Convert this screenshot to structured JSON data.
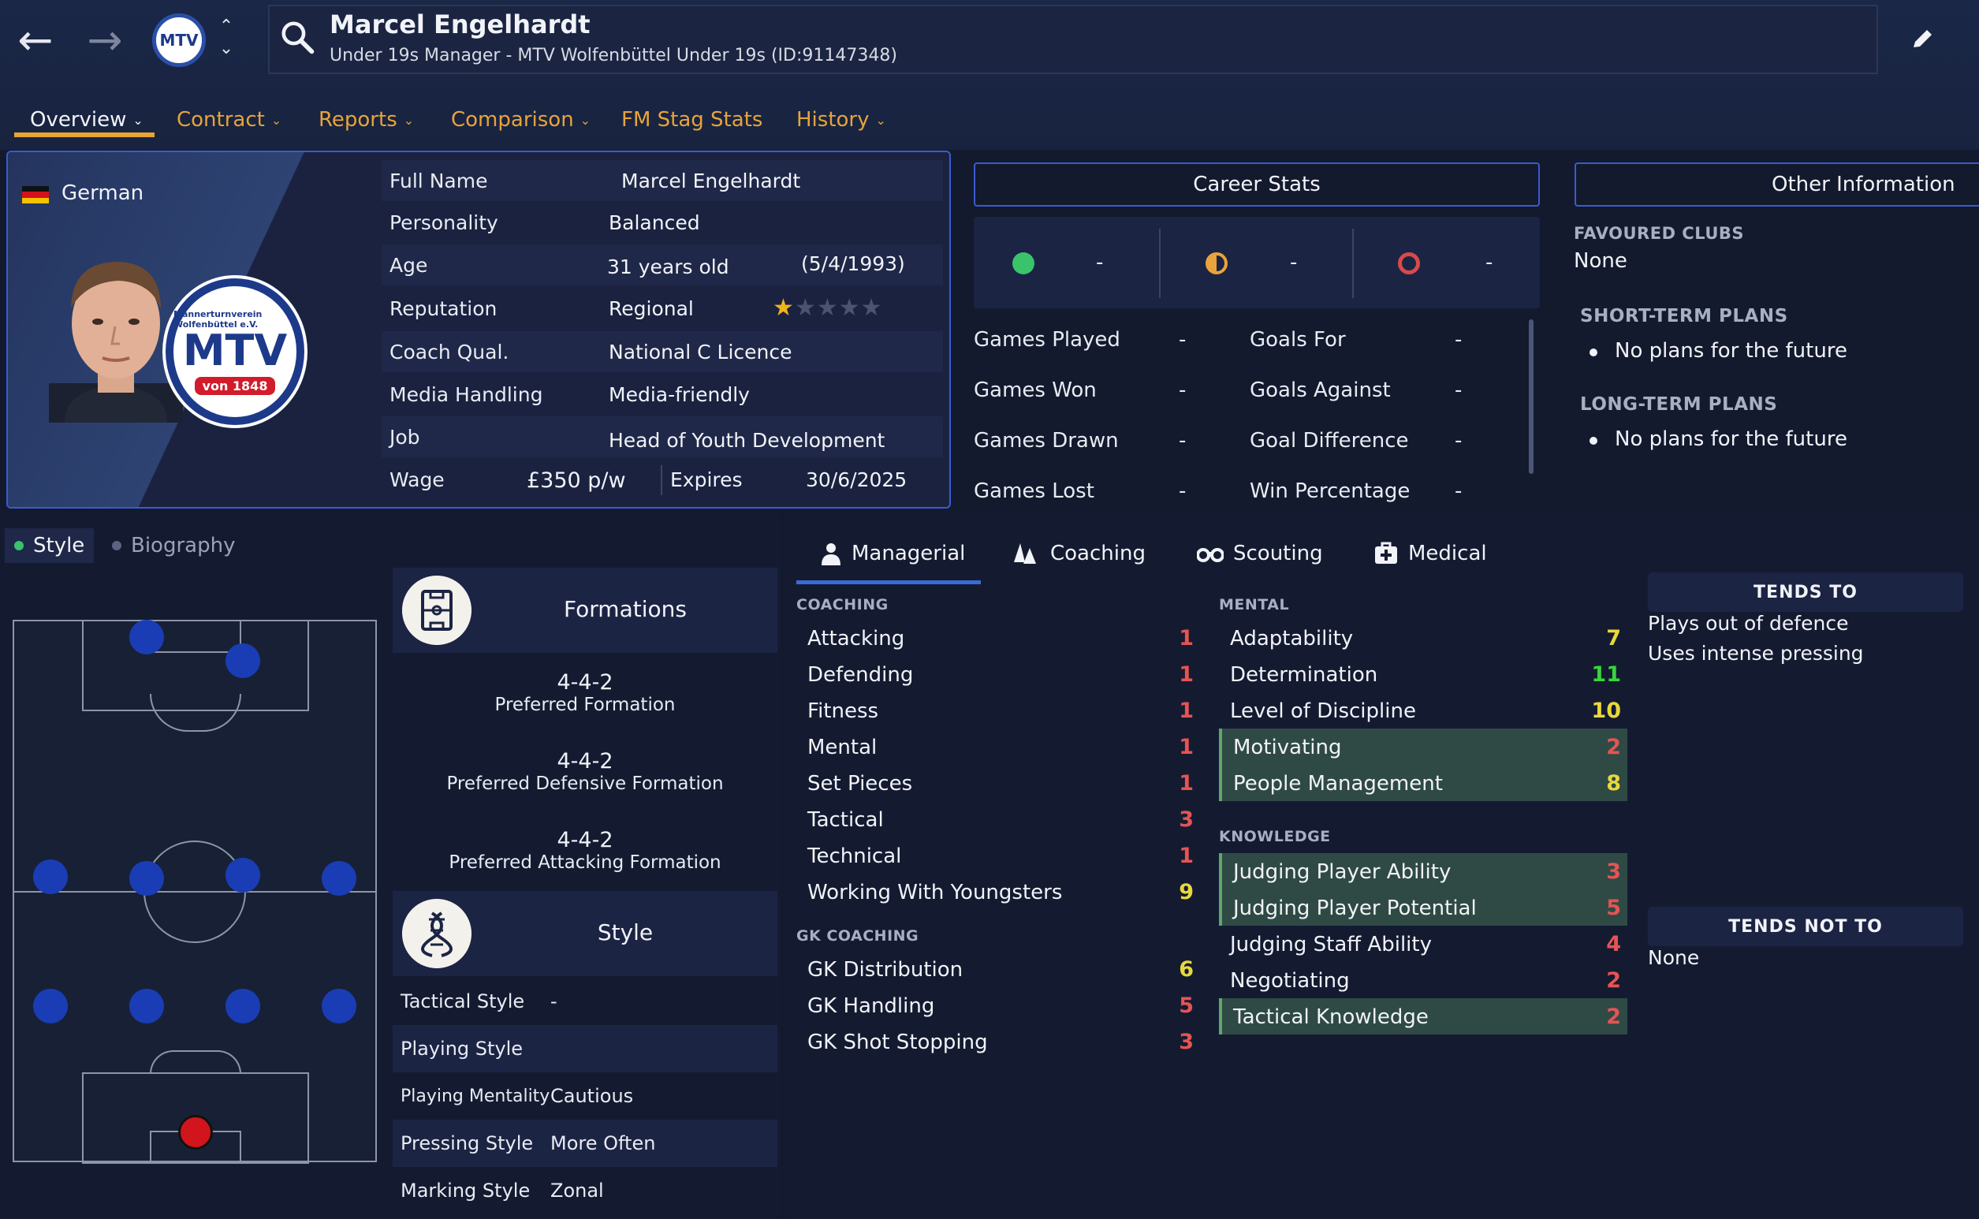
{
  "header": {
    "name": "Marcel Engelhardt",
    "subtitle": "Under 19s Manager - MTV Wolfenbüttel Under 19s (ID:91147348)",
    "club_badge_text": "MTV"
  },
  "tabs": [
    {
      "label": "Overview"
    },
    {
      "label": "Contract"
    },
    {
      "label": "Reports"
    },
    {
      "label": "Comparison"
    },
    {
      "label": "FM Stag Stats"
    },
    {
      "label": "History"
    }
  ],
  "profile": {
    "nationality": "German",
    "crest_ring": "Männerturnverein Wolfenbüttel e.V.",
    "crest_letters": "MTV",
    "crest_year": "von 1848",
    "full_name_label": "Full Name",
    "full_name": "Marcel Engelhardt",
    "personality_label": "Personality",
    "personality": "Balanced",
    "age_label": "Age",
    "age": "31 years old",
    "dob": "(5/4/1993)",
    "reputation_label": "Reputation",
    "reputation": "Regional",
    "reputation_stars": 1,
    "coach_qual_label": "Coach Qual.",
    "coach_qual": "National C Licence",
    "media_label": "Media Handling",
    "media": "Media-friendly",
    "job_label": "Job",
    "job": "Head of Youth Development",
    "wage_label": "Wage",
    "wage": "£350 p/w",
    "expires_label": "Expires",
    "expires": "30/6/2025"
  },
  "career_stats": {
    "title": "Career Stats",
    "wins": "-",
    "draws": "-",
    "losses": "-",
    "rows": [
      {
        "l1": "Games Played",
        "v1": "-",
        "l2": "Goals For",
        "v2": "-"
      },
      {
        "l1": "Games Won",
        "v1": "-",
        "l2": "Goals Against",
        "v2": "-"
      },
      {
        "l1": "Games Drawn",
        "v1": "-",
        "l2": "Goal Difference",
        "v2": "-"
      },
      {
        "l1": "Games Lost",
        "v1": "-",
        "l2": "Win Percentage",
        "v2": "-"
      }
    ]
  },
  "other_info": {
    "title": "Other Information",
    "favoured_title": "FAVOURED CLUBS",
    "favoured": "None",
    "short_title": "SHORT-TERM PLANS",
    "short": "No plans for the future",
    "long_title": "LONG-TERM PLANS",
    "long": "No plans for the future"
  },
  "subtabs": {
    "style": "Style",
    "biography": "Biography"
  },
  "formations": {
    "title": "Formations",
    "preferred": "4-4-2",
    "preferred_label": "Preferred Formation",
    "defensive": "4-4-2",
    "defensive_label": "Preferred Defensive Formation",
    "attacking": "4-4-2",
    "attacking_label": "Preferred Attacking Formation"
  },
  "style": {
    "title": "Style",
    "rows": [
      {
        "label": "Tactical Style",
        "value": "-"
      },
      {
        "label": "Playing Style",
        "value": ""
      },
      {
        "label": "Playing Mentality",
        "value": "Cautious"
      },
      {
        "label": "Pressing Style",
        "value": "More Often"
      },
      {
        "label": "Marking Style",
        "value": "Zonal"
      }
    ]
  },
  "attr_tabs": [
    "Managerial",
    "Coaching",
    "Scouting",
    "Medical"
  ],
  "coaching": {
    "title": "COACHING",
    "items": [
      {
        "name": "Attacking",
        "value": "1"
      },
      {
        "name": "Defending",
        "value": "1"
      },
      {
        "name": "Fitness",
        "value": "1"
      },
      {
        "name": "Mental",
        "value": "1"
      },
      {
        "name": "Set Pieces",
        "value": "1"
      },
      {
        "name": "Tactical",
        "value": "3"
      },
      {
        "name": "Technical",
        "value": "1"
      },
      {
        "name": "Working With Youngsters",
        "value": "9"
      }
    ]
  },
  "gk_coaching": {
    "title": "GK COACHING",
    "items": [
      {
        "name": "GK Distribution",
        "value": "6"
      },
      {
        "name": "GK Handling",
        "value": "5"
      },
      {
        "name": "GK Shot Stopping",
        "value": "3"
      }
    ]
  },
  "mental": {
    "title": "MENTAL",
    "items": [
      {
        "name": "Adaptability",
        "value": "7"
      },
      {
        "name": "Determination",
        "value": "11"
      },
      {
        "name": "Level of Discipline",
        "value": "10"
      },
      {
        "name": "Motivating",
        "value": "2"
      },
      {
        "name": "People Management",
        "value": "8"
      }
    ]
  },
  "knowledge": {
    "title": "KNOWLEDGE",
    "items": [
      {
        "name": "Judging Player Ability",
        "value": "3"
      },
      {
        "name": "Judging Player Potential",
        "value": "5"
      },
      {
        "name": "Judging Staff Ability",
        "value": "4"
      },
      {
        "name": "Negotiating",
        "value": "2"
      },
      {
        "name": "Tactical Knowledge",
        "value": "2"
      }
    ]
  },
  "tends": {
    "to_title": "TENDS TO",
    "to_items": [
      "Plays out of defence",
      "Uses intense pressing"
    ],
    "not_title": "TENDS NOT TO",
    "not_items": [
      "None"
    ]
  },
  "colors": {
    "accent": "#e8a33a",
    "highlight_border": "#3a5bd0",
    "attr_red": "#e55454",
    "attr_yellow": "#e8d83c",
    "attr_green": "#37d63c"
  }
}
